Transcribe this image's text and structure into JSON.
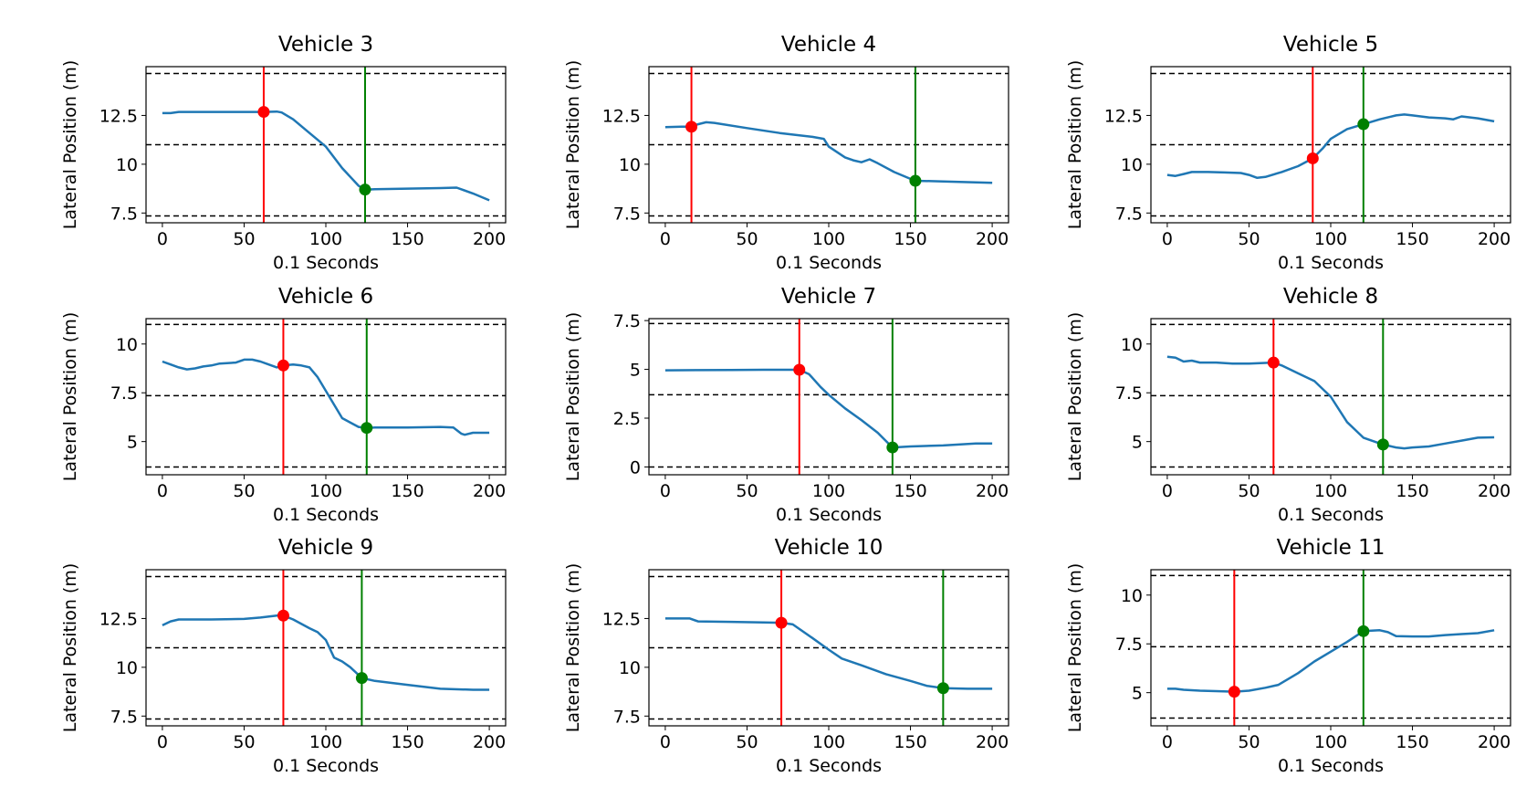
{
  "colors": {
    "line": "#1f77b4",
    "start": "#ff0000",
    "end": "#008000",
    "lane": "#000000"
  },
  "chart_data": [
    {
      "type": "line",
      "title": "Vehicle 3",
      "xlabel": "0.1 Seconds",
      "ylabel": "Lateral Position (m)",
      "xlim": [
        -10,
        210
      ],
      "ylim": [
        7.0,
        15.0
      ],
      "xticks": [
        0,
        50,
        100,
        150,
        200
      ],
      "yticks": [
        7.5,
        10.0,
        12.5
      ],
      "lane_lines": [
        7.35,
        11.0,
        14.65
      ],
      "start_marker": {
        "x": 62,
        "y": 12.68
      },
      "end_marker": {
        "x": 124,
        "y": 8.7
      },
      "x": [
        0,
        5,
        10,
        30,
        50,
        62,
        70,
        73,
        80,
        90,
        100,
        110,
        120,
        124,
        130,
        150,
        170,
        180,
        190,
        200
      ],
      "y": [
        12.62,
        12.62,
        12.68,
        12.68,
        12.68,
        12.68,
        12.7,
        12.65,
        12.3,
        11.6,
        10.9,
        9.8,
        8.9,
        8.7,
        8.72,
        8.75,
        8.78,
        8.8,
        8.5,
        8.15
      ]
    },
    {
      "type": "line",
      "title": "Vehicle 4",
      "xlabel": "0.1 Seconds",
      "ylabel": "Lateral Position (m)",
      "xlim": [
        -10,
        210
      ],
      "ylim": [
        7.0,
        15.0
      ],
      "xticks": [
        0,
        50,
        100,
        150,
        200
      ],
      "yticks": [
        7.5,
        10.0,
        12.5
      ],
      "lane_lines": [
        7.35,
        11.0,
        14.65
      ],
      "start_marker": {
        "x": 16,
        "y": 11.92
      },
      "end_marker": {
        "x": 153,
        "y": 9.15
      },
      "x": [
        0,
        10,
        16,
        20,
        25,
        30,
        50,
        70,
        90,
        97,
        100,
        110,
        115,
        120,
        125,
        130,
        140,
        150,
        153,
        170,
        200
      ],
      "y": [
        11.9,
        11.92,
        11.92,
        12.05,
        12.15,
        12.12,
        11.85,
        11.6,
        11.4,
        11.3,
        10.9,
        10.35,
        10.2,
        10.1,
        10.25,
        10.05,
        9.6,
        9.25,
        9.15,
        9.12,
        9.05
      ]
    },
    {
      "type": "line",
      "title": "Vehicle 5",
      "xlabel": "0.1 Seconds",
      "ylabel": "Lateral Position (m)",
      "xlim": [
        -10,
        210
      ],
      "ylim": [
        7.0,
        15.0
      ],
      "xticks": [
        0,
        50,
        100,
        150,
        200
      ],
      "yticks": [
        7.5,
        10.0,
        12.5
      ],
      "lane_lines": [
        7.35,
        11.0,
        14.65
      ],
      "start_marker": {
        "x": 89,
        "y": 10.3
      },
      "end_marker": {
        "x": 120,
        "y": 12.05
      },
      "x": [
        0,
        5,
        10,
        15,
        25,
        35,
        45,
        50,
        55,
        60,
        70,
        80,
        89,
        95,
        100,
        110,
        120,
        130,
        140,
        145,
        150,
        160,
        170,
        175,
        180,
        190,
        200
      ],
      "y": [
        9.45,
        9.4,
        9.5,
        9.6,
        9.6,
        9.58,
        9.55,
        9.45,
        9.3,
        9.35,
        9.6,
        9.9,
        10.3,
        10.8,
        11.3,
        11.8,
        12.05,
        12.3,
        12.5,
        12.55,
        12.5,
        12.4,
        12.35,
        12.3,
        12.45,
        12.35,
        12.2
      ]
    },
    {
      "type": "line",
      "title": "Vehicle 6",
      "xlabel": "0.1 Seconds",
      "ylabel": "Lateral Position (m)",
      "xlim": [
        -10,
        210
      ],
      "ylim": [
        3.3,
        11.3
      ],
      "xticks": [
        0,
        50,
        100,
        150,
        200
      ],
      "yticks": [
        5.0,
        7.5,
        10.0
      ],
      "lane_lines": [
        3.7,
        7.35,
        11.0
      ],
      "start_marker": {
        "x": 74,
        "y": 8.9
      },
      "end_marker": {
        "x": 125,
        "y": 5.7
      },
      "x": [
        0,
        5,
        10,
        15,
        20,
        25,
        30,
        35,
        45,
        50,
        55,
        60,
        65,
        70,
        74,
        80,
        85,
        90,
        95,
        100,
        110,
        120,
        125,
        130,
        150,
        170,
        178,
        183,
        185,
        190,
        200
      ],
      "y": [
        9.1,
        8.95,
        8.8,
        8.7,
        8.75,
        8.85,
        8.9,
        9.0,
        9.05,
        9.2,
        9.2,
        9.1,
        8.95,
        8.8,
        8.9,
        8.95,
        8.9,
        8.8,
        8.3,
        7.6,
        6.2,
        5.75,
        5.7,
        5.72,
        5.72,
        5.75,
        5.72,
        5.4,
        5.35,
        5.45,
        5.45
      ]
    },
    {
      "type": "line",
      "title": "Vehicle 7",
      "xlabel": "0.1 Seconds",
      "ylabel": "Lateral Position (m)",
      "xlim": [
        -10,
        210
      ],
      "ylim": [
        -0.4,
        7.6
      ],
      "xticks": [
        0,
        50,
        100,
        150,
        200
      ],
      "yticks": [
        0.0,
        2.5,
        5.0,
        7.5
      ],
      "lane_lines": [
        0.0,
        3.7,
        7.35
      ],
      "start_marker": {
        "x": 82,
        "y": 4.98
      },
      "end_marker": {
        "x": 139,
        "y": 1.0
      },
      "x": [
        0,
        20,
        40,
        60,
        82,
        88,
        95,
        100,
        110,
        120,
        130,
        139,
        150,
        170,
        190,
        200
      ],
      "y": [
        4.95,
        4.96,
        4.97,
        4.98,
        4.98,
        4.75,
        4.1,
        3.7,
        3.0,
        2.4,
        1.75,
        1.0,
        1.05,
        1.1,
        1.2,
        1.2
      ]
    },
    {
      "type": "line",
      "title": "Vehicle 8",
      "xlabel": "0.1 Seconds",
      "ylabel": "Lateral Position (m)",
      "xlim": [
        -10,
        210
      ],
      "ylim": [
        3.3,
        11.3
      ],
      "xticks": [
        0,
        50,
        100,
        150,
        200
      ],
      "yticks": [
        5.0,
        7.5,
        10.0
      ],
      "lane_lines": [
        3.7,
        7.35,
        11.0
      ],
      "start_marker": {
        "x": 65,
        "y": 9.05
      },
      "end_marker": {
        "x": 132,
        "y": 4.85
      },
      "x": [
        0,
        5,
        10,
        15,
        20,
        30,
        40,
        50,
        65,
        70,
        80,
        90,
        100,
        110,
        120,
        132,
        140,
        145,
        150,
        160,
        170,
        180,
        190,
        200
      ],
      "y": [
        9.35,
        9.3,
        9.1,
        9.15,
        9.05,
        9.05,
        9.0,
        9.0,
        9.05,
        8.9,
        8.5,
        8.1,
        7.3,
        6.0,
        5.2,
        4.85,
        4.7,
        4.65,
        4.7,
        4.75,
        4.9,
        5.05,
        5.2,
        5.22
      ]
    },
    {
      "type": "line",
      "title": "Vehicle 9",
      "xlabel": "0.1 Seconds",
      "ylabel": "Lateral Position (m)",
      "xlim": [
        -10,
        210
      ],
      "ylim": [
        7.0,
        15.0
      ],
      "xticks": [
        0,
        50,
        100,
        150,
        200
      ],
      "yticks": [
        7.5,
        10.0,
        12.5
      ],
      "lane_lines": [
        7.35,
        11.0,
        14.65
      ],
      "start_marker": {
        "x": 74,
        "y": 12.65
      },
      "end_marker": {
        "x": 122,
        "y": 9.45
      },
      "x": [
        0,
        5,
        10,
        30,
        50,
        60,
        70,
        74,
        80,
        90,
        95,
        100,
        105,
        110,
        115,
        122,
        130,
        150,
        170,
        190,
        200
      ],
      "y": [
        12.15,
        12.35,
        12.45,
        12.45,
        12.48,
        12.55,
        12.65,
        12.65,
        12.45,
        12.0,
        11.8,
        11.4,
        10.5,
        10.3,
        10.0,
        9.45,
        9.3,
        9.1,
        8.9,
        8.85,
        8.85
      ]
    },
    {
      "type": "line",
      "title": "Vehicle 10",
      "xlabel": "0.1 Seconds",
      "ylabel": "Lateral Position (m)",
      "xlim": [
        -10,
        210
      ],
      "ylim": [
        7.0,
        15.0
      ],
      "xticks": [
        0,
        50,
        100,
        150,
        200
      ],
      "yticks": [
        7.5,
        10.0,
        12.5
      ],
      "lane_lines": [
        7.35,
        11.0,
        14.65
      ],
      "start_marker": {
        "x": 71,
        "y": 12.28
      },
      "end_marker": {
        "x": 170,
        "y": 8.93
      },
      "x": [
        0,
        10,
        15,
        20,
        40,
        60,
        71,
        78,
        90,
        100,
        108,
        120,
        135,
        150,
        160,
        170,
        185,
        200
      ],
      "y": [
        12.5,
        12.5,
        12.5,
        12.35,
        12.33,
        12.3,
        12.28,
        12.2,
        11.5,
        10.9,
        10.45,
        10.1,
        9.65,
        9.3,
        9.05,
        8.93,
        8.9,
        8.9
      ]
    },
    {
      "type": "line",
      "title": "Vehicle 11",
      "xlabel": "0.1 Seconds",
      "ylabel": "Lateral Position (m)",
      "xlim": [
        -10,
        210
      ],
      "ylim": [
        3.3,
        11.3
      ],
      "xticks": [
        0,
        50,
        100,
        150,
        200
      ],
      "yticks": [
        5.0,
        7.5,
        10.0
      ],
      "lane_lines": [
        3.7,
        7.35,
        11.0
      ],
      "start_marker": {
        "x": 41,
        "y": 5.05
      },
      "end_marker": {
        "x": 120,
        "y": 8.15
      },
      "x": [
        0,
        5,
        10,
        20,
        30,
        41,
        50,
        60,
        68,
        80,
        90,
        100,
        110,
        120,
        130,
        135,
        140,
        150,
        160,
        170,
        180,
        190,
        200
      ],
      "y": [
        5.2,
        5.2,
        5.15,
        5.1,
        5.08,
        5.05,
        5.1,
        5.25,
        5.4,
        6.0,
        6.6,
        7.1,
        7.6,
        8.15,
        8.2,
        8.1,
        7.9,
        7.88,
        7.88,
        7.95,
        8.0,
        8.05,
        8.2
      ]
    }
  ]
}
